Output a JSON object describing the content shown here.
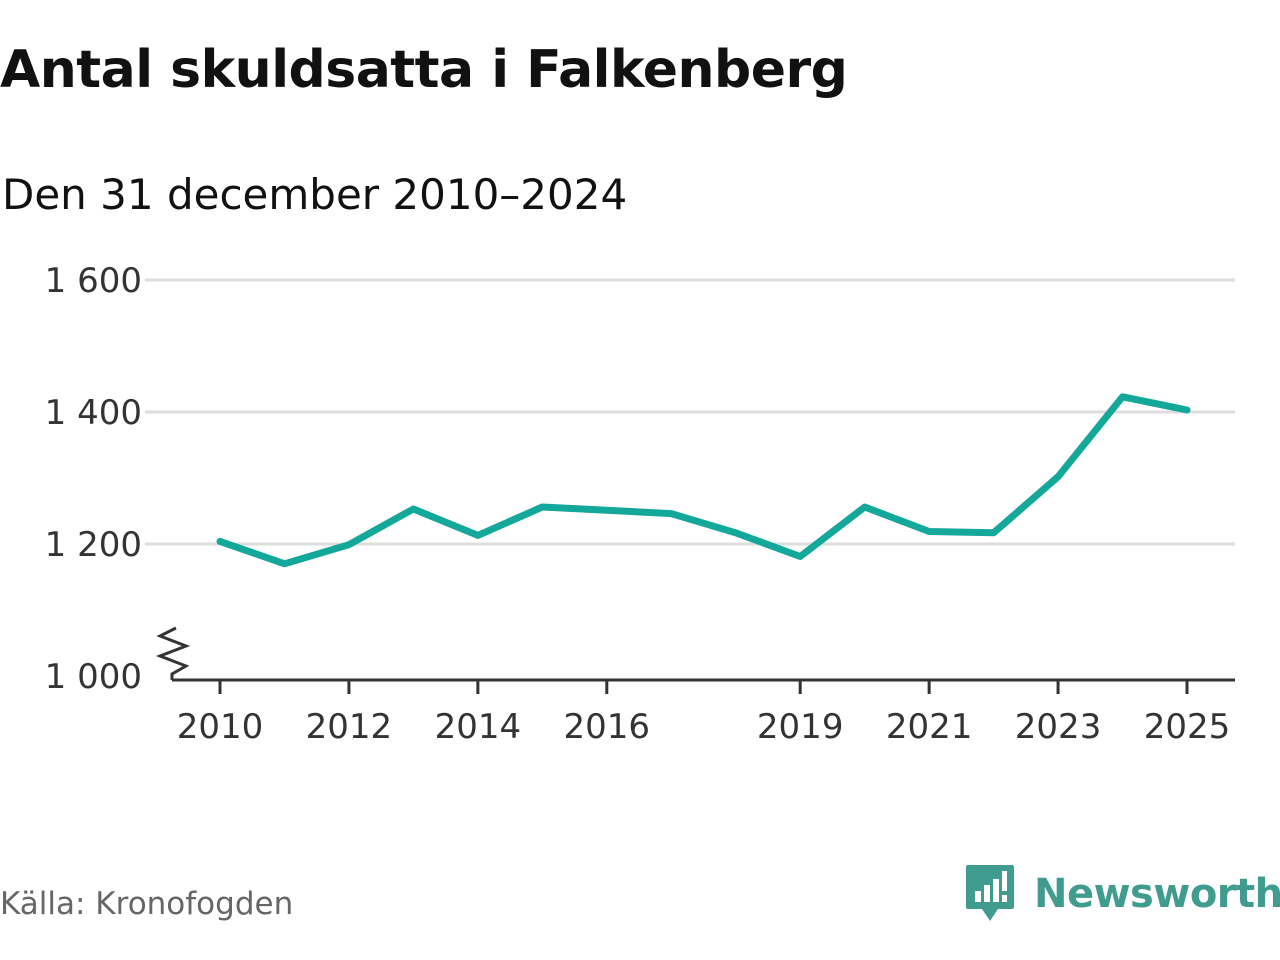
{
  "title": "Antal skuldsatta i Falkenberg",
  "subtitle": "Den 31 december 2010–2024",
  "source": "Källa: Kronofogden",
  "brand": {
    "name": "Newsworthy",
    "icon": "newsworthy-logo-icon",
    "color": "#3f9c8f"
  },
  "chart_data": {
    "type": "line",
    "title": "Antal skuldsatta i Falkenberg",
    "subtitle": "Den 31 december 2010–2024",
    "x_tick_labels": [
      "2010",
      "2012",
      "2014",
      "2016",
      "2019",
      "2021",
      "2023",
      "2025"
    ],
    "x_tick_values": [
      2010,
      2012,
      2014,
      2016,
      2019,
      2021,
      2023,
      2025
    ],
    "y_tick_labels": [
      "1 000",
      "1 200",
      "1 400",
      "1 600"
    ],
    "y_tick_values": [
      1000,
      1200,
      1400,
      1600
    ],
    "ylim": [
      1000,
      1600
    ],
    "y_axis_break": true,
    "grid": true,
    "legend": "none",
    "line_color": "#14a89a",
    "series": [
      {
        "x": [
          2010,
          2011,
          2012,
          2013,
          2014,
          2015,
          2016,
          2017,
          2018,
          2019,
          2020,
          2021,
          2022,
          2023,
          2024,
          2025
        ],
        "values": [
          1204,
          1170,
          1199,
          1253,
          1213,
          1256,
          1251,
          1246,
          1217,
          1181,
          1256,
          1219,
          1217,
          1302,
          1423,
          1403
        ]
      }
    ]
  }
}
